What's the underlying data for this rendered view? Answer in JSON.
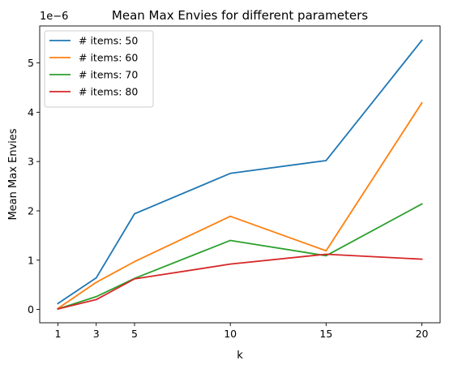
{
  "chart_data": {
    "type": "line",
    "title": "Mean Max Envies for different parameters",
    "xlabel": "k",
    "ylabel": "Mean Max Envies",
    "y_offset_text": "1e−6",
    "x": [
      1,
      3,
      5,
      10,
      15,
      20
    ],
    "x_ticks": [
      "1",
      "3",
      "5",
      "10",
      "15",
      "20"
    ],
    "y_ticks": [
      "0",
      "1",
      "2",
      "3",
      "4",
      "5"
    ],
    "xlim": [
      0.05,
      20.95
    ],
    "ylim": [
      -2.7e-07,
      5.75e-06
    ],
    "grid": false,
    "legend": "top-left",
    "series": [
      {
        "name": "# items: 50",
        "color": "#1f77b4",
        "values": [
          1.2e-07,
          6.4e-07,
          1.94e-06,
          2.76e-06,
          3.02e-06,
          5.46e-06
        ]
      },
      {
        "name": "# items: 60",
        "color": "#ff7f0e",
        "values": [
          2e-08,
          5.5e-07,
          9.7e-07,
          1.89e-06,
          1.19e-06,
          4.19e-06
        ]
      },
      {
        "name": "# items: 70",
        "color": "#2ca02c",
        "values": [
          1e-08,
          2.6e-07,
          6.3e-07,
          1.4e-06,
          1.09e-06,
          2.14e-06
        ]
      },
      {
        "name": "# items: 80",
        "color": "#d62728",
        "values": [
          1e-08,
          2e-07,
          6.2e-07,
          9.2e-07,
          1.12e-06,
          1.02e-06
        ]
      }
    ]
  }
}
